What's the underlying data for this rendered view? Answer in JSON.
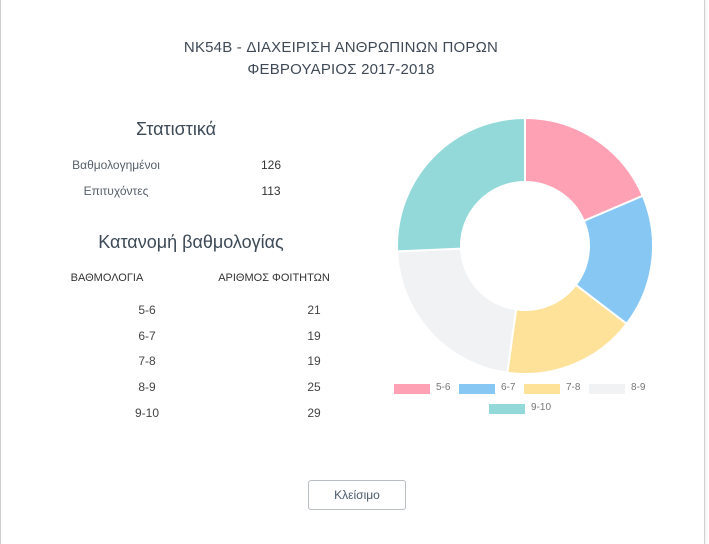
{
  "modal": {
    "title_line1": "NK54B - ΔΙΑΧΕΙΡΙΣΗ ΑΝΘΡΩΠΙΝΩΝ ΠΟΡΩΝ",
    "title_line2": "ΦΕΒΡΟΥΑΡΙΟΣ 2017-2018",
    "close_label": "Κλείσιμο"
  },
  "statistics": {
    "heading": "Στατιστικά",
    "rows": [
      {
        "label": "Βαθμολογημένοι",
        "value": "126"
      },
      {
        "label": "Επιτυχόντες",
        "value": "113"
      }
    ]
  },
  "distribution": {
    "heading": "Κατανομή βαθμολογίας",
    "col_grade": "ΒΑΘΜΟΛΟΓΙΑ",
    "col_students": "ΑΡΙΘΜΟΣ ΦΟΙΤΗΤΩΝ",
    "rows": [
      {
        "grade": "5-6",
        "count": "21"
      },
      {
        "grade": "6-7",
        "count": "19"
      },
      {
        "grade": "7-8",
        "count": "19"
      },
      {
        "grade": "8-9",
        "count": "25"
      },
      {
        "grade": "9-10",
        "count": "29"
      }
    ]
  },
  "chart_data": {
    "type": "pie",
    "categories": [
      "5-6",
      "6-7",
      "7-8",
      "8-9",
      "9-10"
    ],
    "values": [
      21,
      19,
      19,
      25,
      29
    ],
    "colors": [
      "#ffa1b5",
      "#86c7f3",
      "#ffe29a",
      "#f1f2f4",
      "#93d9d9"
    ],
    "legend_position": "bottom",
    "donut": true
  }
}
